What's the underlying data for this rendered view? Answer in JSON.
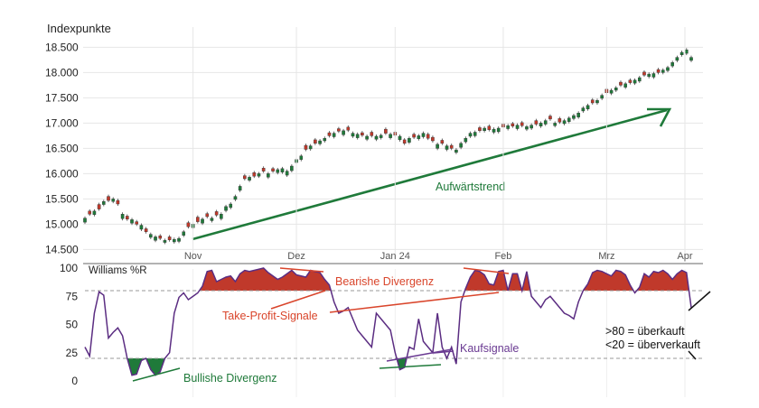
{
  "colors": {
    "up": "#1f7a3a",
    "down": "#c0392b",
    "wr_line": "#5b2d82",
    "overbought_fill": "#c0392b",
    "oversold_fill": "#1f7a3a",
    "trend": "#1f7a3a",
    "bearish": "#d9452b",
    "kauf": "#6a3a92",
    "grid": "#e6e6e6",
    "ref_line": "#999999"
  },
  "chart_data": [
    {
      "type": "candlestick",
      "ylabel": "Indexpunkte",
      "ylim": [
        14400,
        18900
      ],
      "yticks": [
        14500,
        15000,
        15500,
        16000,
        16500,
        17000,
        17500,
        18000,
        18500
      ],
      "ytick_labels": [
        "14.500",
        "15.000",
        "15.500",
        "16.000",
        "16.500",
        "17.000",
        "17.500",
        "18.000",
        "18.500"
      ],
      "x_count": 130,
      "xticks": [
        {
          "index": 23,
          "label": "Nov"
        },
        {
          "index": 45,
          "label": "Dez"
        },
        {
          "index": 66,
          "label": "Jan 24"
        },
        {
          "index": 89,
          "label": "Feb"
        },
        {
          "index": 111,
          "label": "Mrz"
        },
        {
          "index": 132,
          "label": "Apr"
        }
      ],
      "close": [
        15120,
        15200,
        15260,
        15300,
        15450,
        15470,
        15500,
        15400,
        15200,
        15100,
        15090,
        15000,
        14980,
        14850,
        14800,
        14750,
        14720,
        14680,
        14690,
        14700,
        14720,
        14850,
        14950,
        15000,
        15050,
        15100,
        15150,
        15120,
        15180,
        15200,
        15350,
        15400,
        15550,
        15750,
        15900,
        15930,
        15950,
        16000,
        16050,
        16000,
        16050,
        16080,
        16100,
        16050,
        16150,
        16280,
        16350,
        16480,
        16550,
        16600,
        16650,
        16700,
        16750,
        16800,
        16840,
        16850,
        16860,
        16800,
        16780,
        16760,
        16740,
        16750,
        16740,
        16760,
        16800,
        16780,
        16760,
        16740,
        16600,
        16700,
        16720,
        16750,
        16800,
        16700,
        16650,
        16580,
        16600,
        16550,
        16500,
        16470,
        16600,
        16700,
        16800,
        16820,
        16850,
        16900,
        16870,
        16880,
        16900,
        16920,
        16950,
        16940,
        16960,
        16950,
        16930,
        16960,
        16980,
        17000,
        17050,
        17080,
        17000,
        17020,
        17050,
        17100,
        17150,
        17200,
        17300,
        17350,
        17400,
        17450,
        17550,
        17600,
        17650,
        17700,
        17750,
        17780,
        17800,
        17850,
        17900,
        17950,
        17970,
        17980,
        18000,
        18050,
        18100,
        18200,
        18300,
        18400,
        18450,
        18300
      ],
      "open_offset": [
        -80,
        60,
        -70,
        90,
        -60,
        80,
        -50,
        70,
        -90,
        60,
        -70,
        50,
        -80,
        60,
        -60,
        -70,
        50,
        -40,
        60,
        -50,
        -60,
        -70,
        80,
        -70,
        90,
        -80,
        60,
        -50,
        70,
        -90,
        -80,
        -70,
        -60,
        -80,
        60,
        -60,
        70,
        -50,
        60,
        -70,
        50,
        -60,
        -70,
        -80,
        -90,
        -60,
        -70,
        80,
        -60,
        70,
        -60,
        -50,
        60,
        -70,
        50,
        -80,
        60,
        -60,
        -70,
        50,
        -60,
        70,
        -60,
        -50,
        80,
        -70,
        60,
        -70,
        70,
        -80,
        60,
        -60,
        -70,
        80,
        70,
        -80,
        60,
        -70,
        60,
        -50,
        -80,
        -70,
        -60,
        -70,
        60,
        -50,
        70,
        -60,
        -70,
        60,
        -60,
        50,
        -70,
        60,
        -50,
        -60,
        70,
        -60,
        -70,
        60,
        -50,
        70,
        -60,
        -70,
        -60,
        -80,
        -60,
        -70,
        60,
        -50,
        -60,
        70,
        -60,
        -50,
        60,
        -70,
        50,
        -60,
        -70,
        60,
        -50,
        -70,
        60,
        -50,
        -60,
        -70,
        -60,
        -50,
        -70,
        -60,
        200
      ],
      "annotations": [
        {
          "text": "Aufwärtstrend"
        }
      ]
    },
    {
      "type": "line",
      "title": "Williams %R",
      "ylim": [
        0,
        100
      ],
      "yticks": [
        0,
        25,
        50,
        75,
        100
      ],
      "ytick_labels": [
        "0",
        "25",
        "50",
        "75",
        "100"
      ],
      "reference_levels": [
        80,
        20
      ],
      "values": [
        30,
        22,
        60,
        79,
        76,
        38,
        43,
        47,
        40,
        20,
        5,
        6,
        18,
        20,
        10,
        5,
        8,
        20,
        25,
        60,
        74,
        78,
        72,
        75,
        78,
        84,
        97,
        98,
        88,
        90,
        92,
        93,
        88,
        95,
        98,
        97,
        98,
        99,
        100,
        96,
        93,
        90,
        92,
        95,
        98,
        94,
        93,
        92,
        98,
        97,
        96,
        90,
        85,
        70,
        60,
        62,
        65,
        55,
        45,
        40,
        35,
        30,
        60,
        55,
        50,
        45,
        25,
        10,
        12,
        30,
        28,
        55,
        35,
        30,
        25,
        60,
        30,
        20,
        30,
        15,
        70,
        82,
        92,
        98,
        97,
        94,
        86,
        85,
        97,
        98,
        80,
        95,
        95,
        80,
        97,
        75,
        70,
        65,
        72,
        75,
        70,
        65,
        60,
        58,
        55,
        70,
        80,
        86,
        96,
        98,
        97,
        95,
        93,
        98,
        97,
        94,
        85,
        78,
        83,
        95,
        92,
        97,
        96,
        98,
        95,
        90,
        95,
        98,
        96,
        65
      ],
      "annotations": [
        {
          "text": "Bearishe Divergenz"
        },
        {
          "text": "Take-Profit-Signale"
        },
        {
          "text": "Kaufsignale"
        },
        {
          "text": "Bullishe Divergenz"
        },
        {
          "text": ">80 = überkauft"
        },
        {
          "text": "<20 = überverkauft"
        }
      ]
    }
  ]
}
